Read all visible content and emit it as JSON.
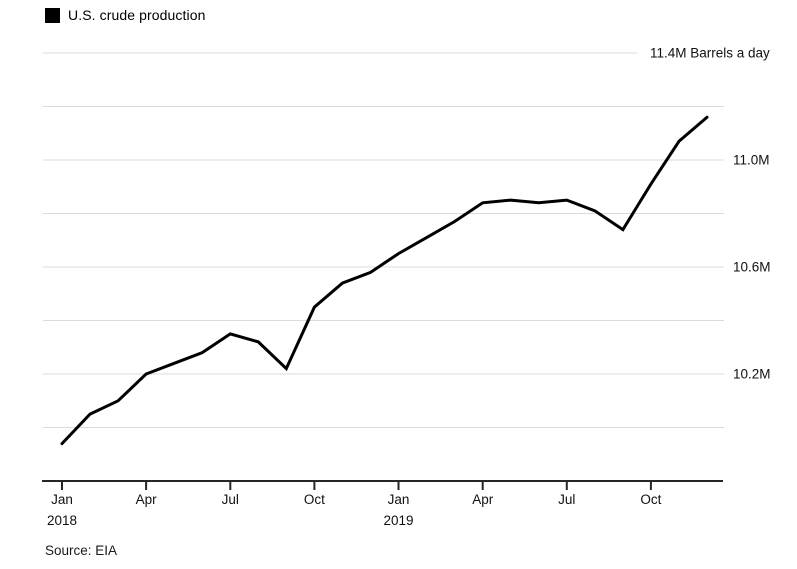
{
  "legend": {
    "label": "U.S. crude production",
    "swatch_color": "#000000"
  },
  "footer": {
    "source": "Source: EIA"
  },
  "colors": {
    "line": "#000000",
    "gridline": "#dbdbdb",
    "axis": "#262626",
    "text": "#111111",
    "background": "#ffffff"
  },
  "chart_data": {
    "type": "line",
    "title": "U.S. crude production",
    "unit_note": "Barrels a day",
    "categories": [
      "Jan 2018",
      "Feb 2018",
      "Mar 2018",
      "Apr 2018",
      "May 2018",
      "Jun 2018",
      "Jul 2018",
      "Aug 2018",
      "Sep 2018",
      "Oct 2018",
      "Nov 2018",
      "Dec 2018",
      "Jan 2019",
      "Feb 2019",
      "Mar 2019",
      "Apr 2019",
      "May 2019",
      "Jun 2019",
      "Jul 2019",
      "Aug 2019",
      "Sep 2019",
      "Oct 2019",
      "Nov 2019",
      "Dec 2019"
    ],
    "values": [
      9.94,
      10.05,
      10.1,
      10.2,
      10.24,
      10.28,
      10.35,
      10.32,
      10.22,
      10.45,
      10.54,
      10.58,
      10.65,
      10.71,
      10.77,
      10.84,
      10.85,
      10.84,
      10.85,
      10.81,
      10.74,
      10.91,
      11.07,
      11.16
    ],
    "ylim": [
      9.8,
      11.4
    ],
    "y_gridline_step": 0.2,
    "y_axis_side": "right",
    "grid": "horizontal-only",
    "legend_position": "top-left",
    "y_ticks": [
      {
        "value": 11.4,
        "label": "11.4M Barrels a day"
      },
      {
        "value": 11.0,
        "label": "11.0M"
      },
      {
        "value": 10.6,
        "label": "10.6M"
      },
      {
        "value": 10.2,
        "label": "10.2M"
      }
    ],
    "x_ticks": [
      {
        "index": 0,
        "label": "Jan",
        "sublabel": "2018"
      },
      {
        "index": 3,
        "label": "Apr"
      },
      {
        "index": 6,
        "label": "Jul"
      },
      {
        "index": 9,
        "label": "Oct"
      },
      {
        "index": 12,
        "label": "Jan",
        "sublabel": "2019"
      },
      {
        "index": 15,
        "label": "Apr"
      },
      {
        "index": 18,
        "label": "Jul"
      },
      {
        "index": 21,
        "label": "Oct"
      }
    ]
  }
}
